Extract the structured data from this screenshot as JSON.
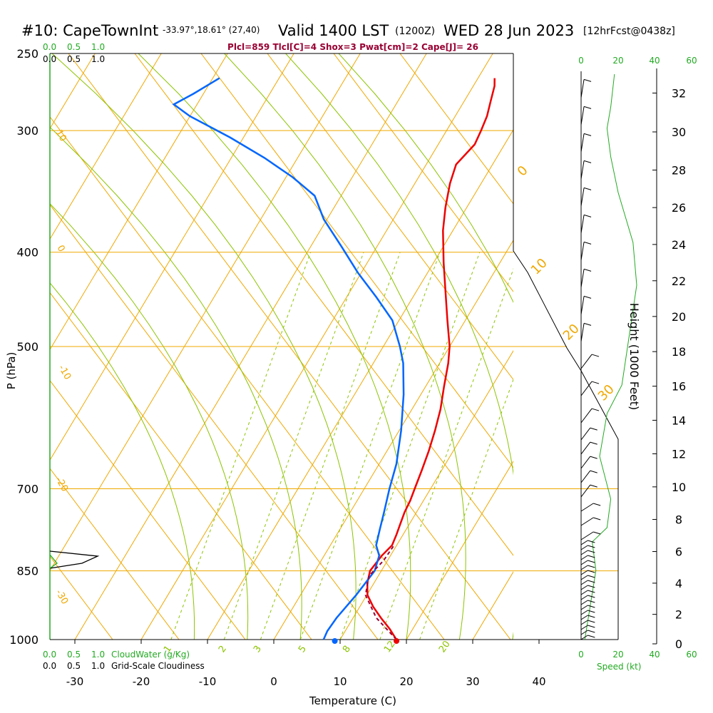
{
  "header": {
    "site": "#10: CapeTownInt",
    "coords": "-33.97°,18.61° (27,40)",
    "valid": "Valid 1400 LST",
    "zulu": "(1200Z)",
    "date": "WED 28 Jun 2023",
    "fcst": "[12hrFcst@0438z]",
    "params": "Plcl=859 Tlcl[C]=4 Shox=3 Pwat[cm]=2 Cape[J]= 26"
  },
  "chart_data": {
    "type": "line",
    "title": "#10: CapeTownInt",
    "xlabel": "Temperature (C)",
    "ylabel": "P (hPa)",
    "y2label": "Height (1000 Feet)",
    "xlim": [
      -30,
      50
    ],
    "ylim": [
      1000,
      250
    ],
    "y_scale": "log",
    "x_ticks": [
      -30,
      -20,
      -10,
      0,
      10,
      20,
      30,
      40
    ],
    "pressure_ticks": [
      250,
      300,
      400,
      500,
      700,
      850,
      1000
    ],
    "height_ticks": [
      0,
      2,
      4,
      6,
      8,
      10,
      12,
      14,
      16,
      18,
      20,
      22,
      24,
      26,
      28,
      30,
      32
    ],
    "isotherm_labels": [
      "10",
      "0",
      "-10",
      "-20",
      "-30"
    ],
    "right_isotherm_labels": [
      "0",
      "10",
      "20",
      "30"
    ],
    "mixing_ratio_labels": [
      "1",
      "2",
      "3",
      "5",
      "8",
      "12",
      "20"
    ],
    "series": [
      {
        "key": "temperature",
        "color": "#ee0000",
        "points": [
          [
            18.5,
            1000
          ],
          [
            16.5,
            975
          ],
          [
            14.2,
            950
          ],
          [
            12,
            925
          ],
          [
            10.1,
            900
          ],
          [
            9,
            875
          ],
          [
            8.3,
            850
          ],
          [
            8.7,
            820
          ],
          [
            9.3,
            800
          ],
          [
            9,
            780
          ],
          [
            8.6,
            760
          ],
          [
            8.2,
            740
          ],
          [
            8,
            720
          ],
          [
            7.6,
            700
          ],
          [
            7,
            670
          ],
          [
            6.3,
            640
          ],
          [
            5.4,
            610
          ],
          [
            4.3,
            580
          ],
          [
            2.8,
            550
          ],
          [
            1.3,
            520
          ],
          [
            0,
            500
          ],
          [
            -2.7,
            470
          ],
          [
            -5.5,
            440
          ],
          [
            -8.5,
            410
          ],
          [
            -11.5,
            380
          ],
          [
            -13.2,
            360
          ],
          [
            -14.7,
            340
          ],
          [
            -15.5,
            325
          ],
          [
            -14.5,
            310
          ],
          [
            -14.8,
            300
          ],
          [
            -15.2,
            290
          ],
          [
            -16,
            280
          ],
          [
            -16.8,
            270
          ],
          [
            -17.5,
            265
          ]
        ]
      },
      {
        "key": "dewpoint",
        "color": "#0066ff",
        "points": [
          [
            7.5,
            1000
          ],
          [
            7.3,
            980
          ],
          [
            7.5,
            950
          ],
          [
            8.4,
            900
          ],
          [
            9,
            850
          ],
          [
            8.3,
            820
          ],
          [
            6.9,
            800
          ],
          [
            6,
            770
          ],
          [
            5.1,
            740
          ],
          [
            3.8,
            700
          ],
          [
            2.6,
            660
          ],
          [
            0.3,
            610
          ],
          [
            -2.6,
            560
          ],
          [
            -5.5,
            520
          ],
          [
            -7.5,
            500
          ],
          [
            -11,
            470
          ],
          [
            -15.5,
            445
          ],
          [
            -20.5,
            420
          ],
          [
            -25.3,
            395
          ],
          [
            -30.5,
            370
          ],
          [
            -34,
            350
          ],
          [
            -39,
            335
          ],
          [
            -45,
            320
          ],
          [
            -52,
            305
          ],
          [
            -60,
            290
          ],
          [
            -63.5,
            282
          ],
          [
            -61.5,
            275
          ],
          [
            -59,
            265
          ]
        ]
      },
      {
        "key": "parcel",
        "color": "#990033",
        "dashed": true,
        "points": [
          [
            18.5,
            1000
          ],
          [
            13.5,
            950
          ],
          [
            9.8,
            900
          ],
          [
            8.6,
            860
          ],
          [
            9.4,
            830
          ],
          [
            9.6,
            800
          ]
        ]
      }
    ],
    "wind_speed_label": "Speed (kt)",
    "wind_speed_ticks": [
      0,
      20,
      40,
      60
    ],
    "cloud_water_label": "CloudWater (g/Kg)",
    "cloudiness_label": "Grid-Scale Cloudiness",
    "cloud_ticks": [
      "0.0",
      "0.5",
      "1.0"
    ]
  }
}
